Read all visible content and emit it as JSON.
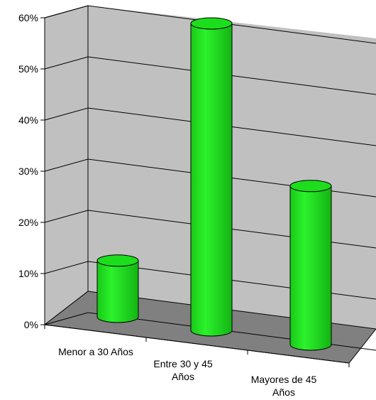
{
  "chart_data": {
    "type": "bar",
    "style": "3d-cylinder",
    "categories": [
      [
        "Menor a 30 Años"
      ],
      [
        "Entre 30 y 45",
        "Años"
      ],
      [
        "Mayores de 45",
        "Años"
      ]
    ],
    "values": [
      0.11,
      0.6,
      0.31
    ],
    "ylim": [
      0,
      0.6
    ],
    "yticks": [
      "0%",
      "10%",
      "20%",
      "30%",
      "40%",
      "50%",
      "60%"
    ],
    "grid": true,
    "legend": false,
    "colors": {
      "bar_fill": "#22ee22",
      "bar_top": "#1cde1c",
      "bar_stroke": "#000000",
      "wall": "#c0c0c0",
      "floor": "#808080"
    }
  }
}
